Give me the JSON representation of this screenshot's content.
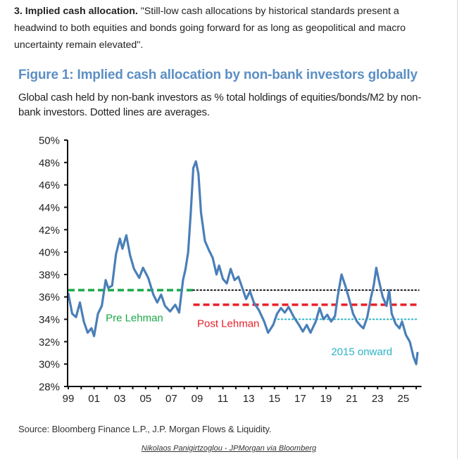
{
  "intro": {
    "bold": "3. Implied cash allocation.",
    "text": " \"Still-low cash allocations by historical standards present a headwind to both equities and bonds going forward for as long as geopolitical and macro uncertainty remain elevated\"."
  },
  "figure": {
    "title": "Figure 1: Implied cash allocation by non-bank investors globally",
    "subtitle": "Global cash held by non-bank investors as % total holdings of equities/bonds/M2 by non-bank investors. Dotted lines are averages.",
    "source": "Source: Bloomberg Finance L.P., J.P. Morgan Flows & Liquidity.",
    "credit": "Nikolaos Panigirtzoglou - JPMorgan via Bloomberg"
  },
  "colors": {
    "series": "#4a7fb8",
    "pre_lehman": "#1aa84a",
    "post_lehman": "#e8202a",
    "since_2015": "#2ab3c6",
    "overall": "#111111",
    "title": "#5b8fc4"
  },
  "chart_data": {
    "type": "line",
    "title": "Figure 1: Implied cash allocation by non-bank investors globally",
    "xlabel": "",
    "ylabel": "",
    "ylim": [
      28,
      50
    ],
    "xlim": [
      1999,
      2026.3
    ],
    "grid": false,
    "y_ticks": [
      "28%",
      "30%",
      "32%",
      "34%",
      "36%",
      "38%",
      "40%",
      "42%",
      "44%",
      "46%",
      "48%",
      "50%"
    ],
    "y_tick_values": [
      28,
      30,
      32,
      34,
      36,
      38,
      40,
      42,
      44,
      46,
      48,
      50
    ],
    "x_ticks": [
      "99",
      "01",
      "03",
      "05",
      "07",
      "09",
      "11",
      "13",
      "15",
      "17",
      "19",
      "21",
      "23",
      "25"
    ],
    "x_tick_values": [
      1999,
      2001,
      2003,
      2005,
      2007,
      2009,
      2011,
      2013,
      2015,
      2017,
      2019,
      2021,
      2023,
      2025
    ],
    "series": [
      {
        "name": "Implied cash allocation",
        "x": [
          1999.0,
          1999.3,
          1999.6,
          1999.9,
          2000.2,
          2000.5,
          2000.8,
          2001.0,
          2001.3,
          2001.6,
          2001.9,
          2002.1,
          2002.4,
          2002.7,
          2003.0,
          2003.2,
          2003.5,
          2003.8,
          2004.1,
          2004.5,
          2004.8,
          2005.2,
          2005.6,
          2005.9,
          2006.2,
          2006.5,
          2006.9,
          2007.3,
          2007.6,
          2007.9,
          2008.1,
          2008.3,
          2008.5,
          2008.7,
          2008.9,
          2009.1,
          2009.3,
          2009.6,
          2009.9,
          2010.2,
          2010.5,
          2010.7,
          2011.0,
          2011.3,
          2011.6,
          2011.9,
          2012.2,
          2012.5,
          2012.8,
          2013.1,
          2013.4,
          2013.8,
          2014.2,
          2014.5,
          2014.9,
          2015.2,
          2015.5,
          2015.8,
          2016.1,
          2016.5,
          2016.9,
          2017.2,
          2017.5,
          2017.8,
          2018.2,
          2018.5,
          2018.8,
          2019.1,
          2019.4,
          2019.7,
          2019.9,
          2020.2,
          2020.5,
          2020.8,
          2021.1,
          2021.4,
          2021.7,
          2021.9,
          2022.2,
          2022.5,
          2022.7,
          2022.9,
          2023.1,
          2023.4,
          2023.7,
          2023.9,
          2024.1,
          2024.4,
          2024.7,
          2024.9,
          2025.2,
          2025.5,
          2025.8,
          2026.0,
          2026.1
        ],
        "values": [
          36.3,
          34.5,
          34.2,
          35.5,
          33.8,
          32.8,
          33.2,
          32.5,
          34.5,
          35.2,
          37.5,
          36.8,
          37.0,
          39.8,
          41.2,
          40.3,
          41.5,
          39.7,
          38.5,
          37.7,
          38.6,
          37.7,
          36.2,
          35.5,
          36.2,
          35.2,
          34.7,
          35.3,
          34.6,
          37.5,
          38.5,
          40.0,
          43.5,
          47.5,
          48.1,
          47.0,
          43.5,
          41.0,
          40.2,
          39.5,
          38.0,
          38.8,
          37.6,
          37.2,
          38.5,
          37.5,
          37.8,
          36.8,
          35.8,
          36.5,
          35.5,
          34.8,
          33.8,
          32.8,
          33.5,
          34.5,
          35.0,
          34.6,
          35.1,
          34.2,
          33.5,
          32.9,
          33.5,
          32.8,
          33.8,
          35.0,
          34.0,
          34.4,
          33.8,
          34.3,
          36.0,
          38.0,
          37.0,
          35.8,
          34.5,
          33.8,
          33.4,
          33.2,
          34.2,
          36.0,
          37.0,
          38.6,
          37.5,
          36.0,
          35.2,
          36.6,
          34.5,
          33.6,
          33.2,
          33.8,
          32.6,
          32.0,
          30.6,
          30.0,
          31.0
        ]
      }
    ],
    "averages": [
      {
        "name": "Pre Lehman",
        "value": 36.6,
        "x_start": 1999.0,
        "x_end": 2008.7,
        "style": "dashed",
        "color": "#1aa84a"
      },
      {
        "name": "Full-sample average",
        "value": 36.6,
        "x_start": 2008.7,
        "x_end": 2026.2,
        "style": "dotted",
        "color": "#111111"
      },
      {
        "name": "Post Lehman",
        "value": 35.3,
        "x_start": 2008.7,
        "x_end": 2026.2,
        "style": "dashed",
        "color": "#e8202a"
      },
      {
        "name": "2015 onward",
        "value": 34.0,
        "x_start": 2015.0,
        "x_end": 2026.2,
        "style": "dotted",
        "color": "#2ab3c6"
      }
    ],
    "annotations": [
      {
        "text": "Pre Lehman",
        "x": 2001.9,
        "y": 33.8,
        "color": "#1aa84a"
      },
      {
        "text": "Post Lehman",
        "x": 2009.0,
        "y": 33.3,
        "color": "#e8202a"
      },
      {
        "text": "2015 onward",
        "x": 2019.4,
        "y": 30.8,
        "color": "#2ab3c6"
      }
    ]
  }
}
